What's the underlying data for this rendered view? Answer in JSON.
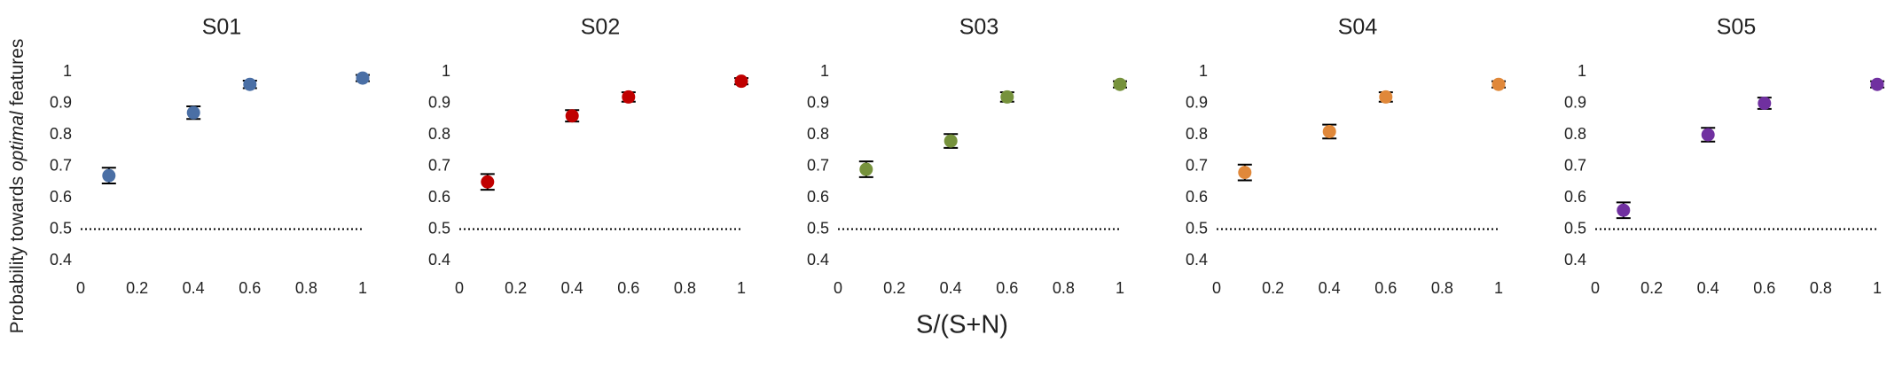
{
  "ylabel_parts": [
    "Probability towards ",
    "optimal",
    " features"
  ],
  "xlabel": "S/(S+N)",
  "chart_data": [
    {
      "type": "scatter",
      "title": "S01",
      "x": [
        0.1,
        0.4,
        0.6,
        1
      ],
      "values": [
        0.67,
        0.87,
        0.96,
        0.98
      ],
      "errors": [
        0.025,
        0.02,
        0.012,
        0.01
      ],
      "color": "#4a6fa5",
      "hline": 0.5,
      "xlim": [
        0,
        1
      ],
      "ylim": [
        0.4,
        1
      ],
      "xticks": [
        0,
        0.2,
        0.4,
        0.6,
        0.8,
        1
      ],
      "yticks": [
        0.4,
        0.5,
        0.6,
        0.7,
        0.8,
        0.9,
        1
      ]
    },
    {
      "type": "scatter",
      "title": "S02",
      "x": [
        0.1,
        0.4,
        0.6,
        1
      ],
      "values": [
        0.65,
        0.86,
        0.92,
        0.97
      ],
      "errors": [
        0.025,
        0.018,
        0.015,
        0.01
      ],
      "color": "#c00000",
      "hline": 0.5,
      "xlim": [
        0,
        1
      ],
      "ylim": [
        0.4,
        1
      ],
      "xticks": [
        0,
        0.2,
        0.4,
        0.6,
        0.8,
        1
      ],
      "yticks": [
        0.4,
        0.5,
        0.6,
        0.7,
        0.8,
        0.9,
        1
      ]
    },
    {
      "type": "scatter",
      "title": "S03",
      "x": [
        0.1,
        0.4,
        0.6,
        1
      ],
      "values": [
        0.69,
        0.78,
        0.92,
        0.96
      ],
      "errors": [
        0.025,
        0.022,
        0.015,
        0.01
      ],
      "color": "#76923c",
      "hline": 0.5,
      "xlim": [
        0,
        1
      ],
      "ylim": [
        0.4,
        1
      ],
      "xticks": [
        0,
        0.2,
        0.4,
        0.6,
        0.8,
        1
      ],
      "yticks": [
        0.4,
        0.5,
        0.6,
        0.7,
        0.8,
        0.9,
        1
      ]
    },
    {
      "type": "scatter",
      "title": "S04",
      "x": [
        0.1,
        0.4,
        0.6,
        1
      ],
      "values": [
        0.68,
        0.81,
        0.92,
        0.96
      ],
      "errors": [
        0.025,
        0.022,
        0.015,
        0.01
      ],
      "color": "#e0883a",
      "hline": 0.5,
      "xlim": [
        0,
        1
      ],
      "ylim": [
        0.4,
        1
      ],
      "xticks": [
        0,
        0.2,
        0.4,
        0.6,
        0.8,
        1
      ],
      "yticks": [
        0.4,
        0.5,
        0.6,
        0.7,
        0.8,
        0.9,
        1
      ]
    },
    {
      "type": "scatter",
      "title": "S05",
      "x": [
        0.1,
        0.4,
        0.6,
        1
      ],
      "values": [
        0.56,
        0.8,
        0.9,
        0.96
      ],
      "errors": [
        0.025,
        0.022,
        0.018,
        0.01
      ],
      "color": "#7030a0",
      "hline": 0.5,
      "xlim": [
        0,
        1
      ],
      "ylim": [
        0.4,
        1
      ],
      "xticks": [
        0,
        0.2,
        0.4,
        0.6,
        0.8,
        1
      ],
      "yticks": [
        0.4,
        0.5,
        0.6,
        0.7,
        0.8,
        0.9,
        1
      ]
    }
  ]
}
